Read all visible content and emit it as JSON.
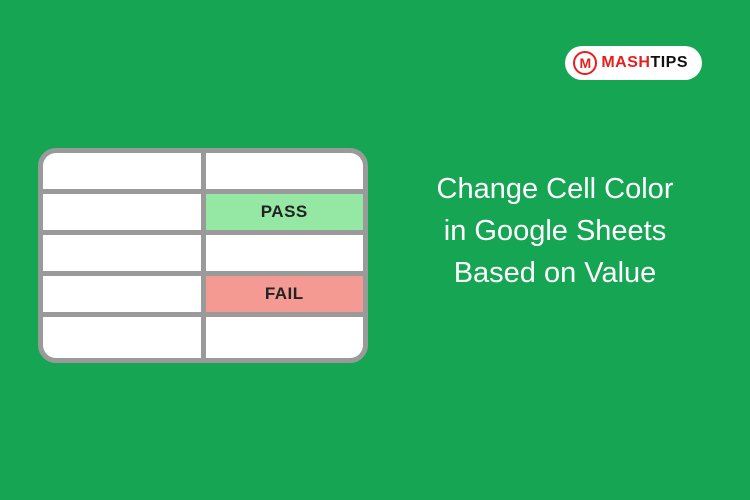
{
  "background_color": "#15a553",
  "logo": {
    "icon_letter": "M",
    "mash": "MASH",
    "tips": "TIPS",
    "bg_color": "#ffffff",
    "accent_color": "#e61e1e",
    "text_color": "#111111"
  },
  "headline": {
    "line1": "Change Cell Color",
    "line2": "in Google Sheets",
    "line3": "Based on Value",
    "color": "#ffffff",
    "fontsize": 29
  },
  "table": {
    "type": "table",
    "columns": 2,
    "rows": 5,
    "border_color": "#9a9a9a",
    "border_width": 5,
    "cell_bg": "#ffffff",
    "pass_bg": "#95e8a4",
    "fail_bg": "#f59a93",
    "text_color": "#222222",
    "cells": [
      [
        {
          "text": "",
          "bg": "#ffffff"
        },
        {
          "text": "",
          "bg": "#ffffff"
        }
      ],
      [
        {
          "text": "",
          "bg": "#ffffff"
        },
        {
          "text": "PASS",
          "bg": "#95e8a4"
        }
      ],
      [
        {
          "text": "",
          "bg": "#ffffff"
        },
        {
          "text": "",
          "bg": "#ffffff"
        }
      ],
      [
        {
          "text": "",
          "bg": "#ffffff"
        },
        {
          "text": "FAIL",
          "bg": "#f59a93"
        }
      ],
      [
        {
          "text": "",
          "bg": "#ffffff"
        },
        {
          "text": "",
          "bg": "#ffffff"
        }
      ]
    ]
  }
}
